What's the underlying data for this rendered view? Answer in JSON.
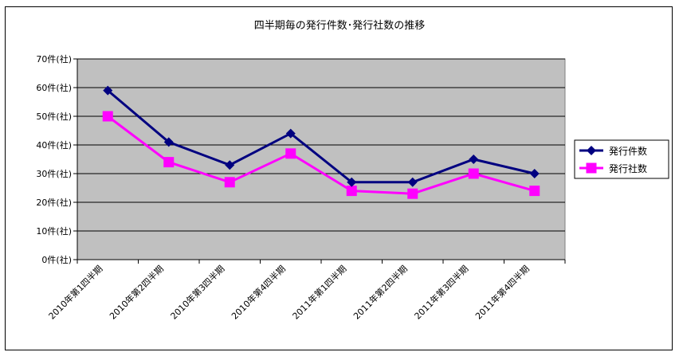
{
  "chart_data": {
    "type": "line",
    "title": "四半期毎の発行件数･発行社数の推移",
    "categories": [
      "2010年第1四半期",
      "2010年第2四半期",
      "2010年第3四半期",
      "2010年第4四半期",
      "2011年第1四半期",
      "2011年第2四半期",
      "2011年第3四半期",
      "2011年第4四半期"
    ],
    "series": [
      {
        "name": "発行件数",
        "values": [
          59,
          41,
          33,
          44,
          27,
          27,
          35,
          30
        ],
        "color": "#000080",
        "marker": "diamond"
      },
      {
        "name": "発行社数",
        "values": [
          50,
          34,
          27,
          37,
          24,
          23,
          30,
          24
        ],
        "color": "#ff00ff",
        "marker": "square"
      }
    ],
    "yticks": [
      "0件(社)",
      "10件(社)",
      "20件(社)",
      "30件(社)",
      "40件(社)",
      "50件(社)",
      "60件(社)",
      "70件(社)"
    ],
    "ylim": [
      0,
      70
    ],
    "grid": true,
    "plot_background": "#c0c0c0",
    "legend_position": "right"
  }
}
